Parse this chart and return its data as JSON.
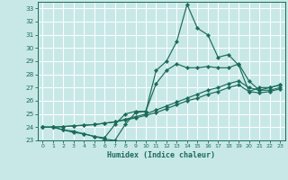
{
  "xlabel": "Humidex (Indice chaleur)",
  "bg_color": "#c8e8e8",
  "grid_color": "#afd8d8",
  "line_color": "#1a6b5a",
  "xlim": [
    -0.5,
    23.5
  ],
  "ylim": [
    23,
    33.5
  ],
  "yticks": [
    23,
    24,
    25,
    26,
    27,
    28,
    29,
    30,
    31,
    32,
    33
  ],
  "xticks": [
    0,
    1,
    2,
    3,
    4,
    5,
    6,
    7,
    8,
    9,
    10,
    11,
    12,
    13,
    14,
    15,
    16,
    17,
    18,
    19,
    20,
    21,
    22,
    23
  ],
  "line1_x": [
    0,
    1,
    2,
    3,
    4,
    5,
    6,
    7,
    8,
    9,
    10,
    11,
    12,
    13,
    14,
    15,
    16,
    17,
    18,
    19,
    20,
    21,
    22,
    23
  ],
  "line1_y": [
    24.0,
    24.0,
    23.8,
    23.6,
    23.5,
    23.3,
    23.1,
    23.0,
    24.2,
    25.1,
    25.2,
    28.3,
    29.0,
    30.5,
    33.3,
    31.5,
    31.0,
    29.3,
    29.5,
    28.7,
    26.7,
    27.0,
    27.0,
    27.2
  ],
  "line2_x": [
    0,
    1,
    2,
    3,
    4,
    5,
    6,
    7,
    8,
    9,
    10,
    11,
    12,
    13,
    14,
    15,
    16,
    17,
    18,
    19,
    20,
    21,
    22,
    23
  ],
  "line2_y": [
    24.0,
    24.0,
    23.8,
    23.7,
    23.5,
    23.3,
    23.2,
    24.2,
    25.0,
    25.2,
    25.2,
    27.3,
    28.3,
    28.8,
    28.5,
    28.5,
    28.6,
    28.5,
    28.5,
    28.8,
    27.5,
    26.8,
    26.8,
    27.0
  ],
  "line3_x": [
    0,
    1,
    2,
    3,
    4,
    5,
    6,
    7,
    8,
    9,
    10,
    11,
    12,
    13,
    14,
    15,
    16,
    17,
    18,
    19,
    20,
    21,
    22,
    23
  ],
  "line3_y": [
    24.0,
    24.0,
    24.05,
    24.1,
    24.15,
    24.2,
    24.3,
    24.4,
    24.6,
    24.8,
    25.0,
    25.3,
    25.6,
    25.9,
    26.2,
    26.5,
    26.8,
    27.0,
    27.3,
    27.5,
    27.0,
    26.8,
    27.0,
    27.2
  ],
  "line4_x": [
    0,
    1,
    2,
    3,
    4,
    5,
    6,
    7,
    8,
    9,
    10,
    11,
    12,
    13,
    14,
    15,
    16,
    17,
    18,
    19,
    20,
    21,
    22,
    23
  ],
  "line4_y": [
    24.0,
    24.0,
    24.05,
    24.1,
    24.15,
    24.2,
    24.3,
    24.4,
    24.55,
    24.7,
    24.9,
    25.1,
    25.4,
    25.7,
    26.0,
    26.2,
    26.5,
    26.7,
    27.0,
    27.2,
    26.7,
    26.6,
    26.7,
    26.9
  ]
}
